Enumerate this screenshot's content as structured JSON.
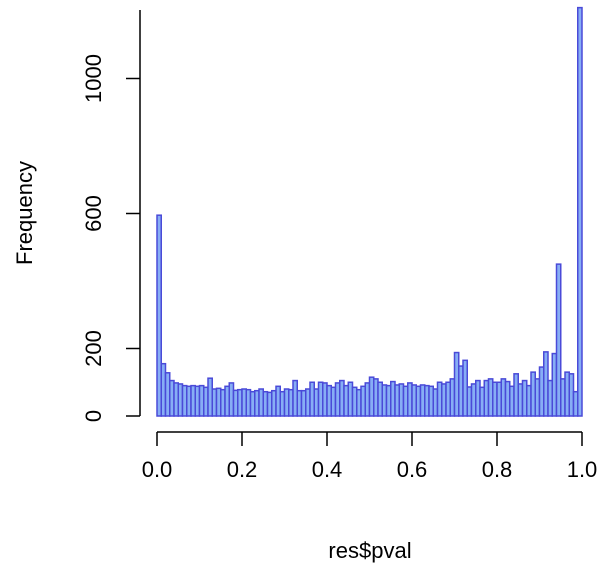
{
  "chart_data": {
    "type": "bar",
    "title": "",
    "xlabel": "res$pval",
    "ylabel": "Frequency",
    "xlim": [
      0,
      1
    ],
    "ylim": [
      0,
      1200
    ],
    "bin_width": 0.01,
    "x_ticks": [
      0,
      0.2,
      0.4,
      0.6,
      0.8,
      1
    ],
    "x_tick_labels": [
      "0.0",
      "0.2",
      "0.4",
      "0.6",
      "0.8",
      "1.0"
    ],
    "y_ticks": [
      0,
      200,
      600,
      1000
    ],
    "y_tick_labels": [
      "0",
      "200",
      "600",
      "1000"
    ],
    "bar_fill": "#87aef5",
    "bar_stroke": "#4a4ad8",
    "values": [
      595,
      155,
      128,
      105,
      98,
      95,
      90,
      88,
      90,
      88,
      90,
      85,
      112,
      80,
      82,
      78,
      88,
      98,
      76,
      78,
      80,
      78,
      72,
      75,
      80,
      72,
      70,
      75,
      88,
      72,
      80,
      78,
      105,
      75,
      75,
      80,
      100,
      80,
      100,
      98,
      90,
      85,
      98,
      105,
      90,
      100,
      85,
      78,
      88,
      98,
      115,
      110,
      100,
      92,
      90,
      102,
      92,
      95,
      88,
      98,
      92,
      88,
      92,
      90,
      88,
      80,
      100,
      95,
      100,
      110,
      188,
      148,
      165,
      86,
      95,
      105,
      85,
      105,
      110,
      100,
      100,
      110,
      102,
      88,
      125,
      95,
      105,
      90,
      130,
      110,
      145,
      190,
      105,
      185,
      450,
      110,
      130,
      125,
      72,
      1210
    ]
  }
}
